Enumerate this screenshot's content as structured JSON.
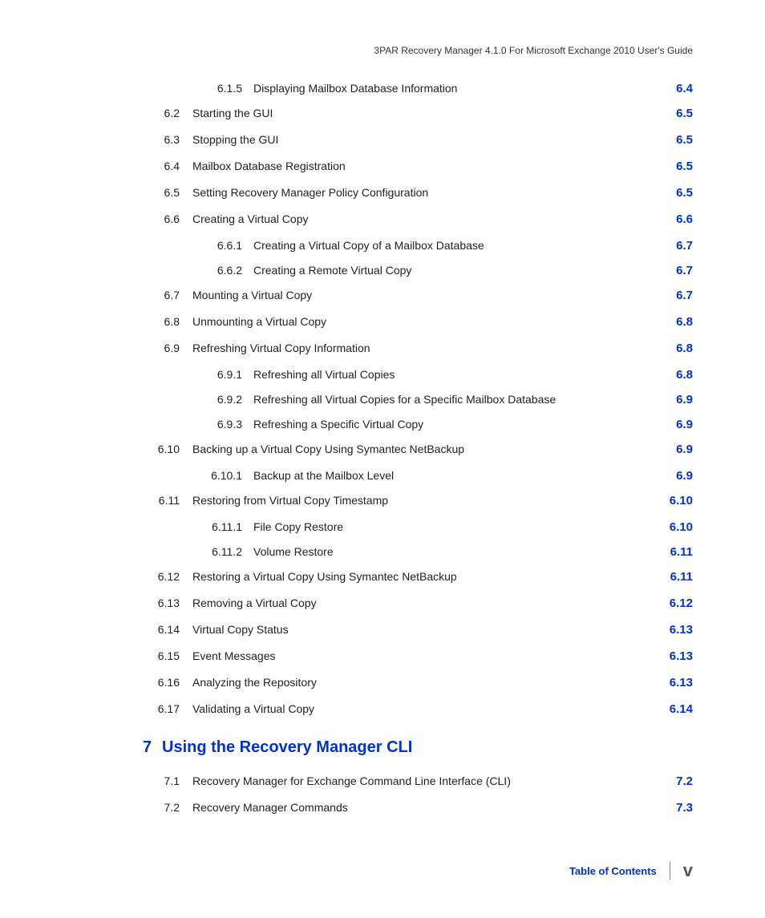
{
  "header": "3PAR Recovery Manager 4.1.0 For Microsoft Exchange 2010 User's Guide",
  "footer": {
    "label": "Table of Contents",
    "page": "v"
  },
  "colors": {
    "link": "#0033cc",
    "text": "#222222",
    "footer_page": "#555555",
    "background": "#ffffff"
  },
  "fontsizes": {
    "body": 14,
    "page_ref": 15,
    "chapter": 20,
    "header": 12,
    "footer_label": 13,
    "footer_page": 22
  },
  "chapter": {
    "num": "7",
    "title": "Using the Recovery Manager CLI"
  },
  "toc": [
    {
      "type": "sub",
      "num": "6.1.5",
      "title": "Displaying Mailbox Database Information",
      "page": "6.4"
    },
    {
      "type": "main",
      "num": "6.2",
      "title": "Starting the GUI",
      "page": "6.5"
    },
    {
      "type": "main",
      "num": "6.3",
      "title": "Stopping the GUI",
      "page": "6.5"
    },
    {
      "type": "main",
      "num": "6.4",
      "title": "Mailbox Database Registration",
      "page": "6.5"
    },
    {
      "type": "main",
      "num": "6.5",
      "title": "Setting Recovery Manager Policy Configuration",
      "page": "6.5"
    },
    {
      "type": "main",
      "num": "6.6",
      "title": "Creating a Virtual Copy",
      "page": "6.6"
    },
    {
      "type": "sub",
      "num": "6.6.1",
      "title": "Creating a Virtual Copy of a Mailbox Database",
      "page": "6.7"
    },
    {
      "type": "sub",
      "num": "6.6.2",
      "title": "Creating a Remote Virtual Copy",
      "page": "6.7"
    },
    {
      "type": "main",
      "num": "6.7",
      "title": "Mounting a Virtual Copy",
      "page": "6.7"
    },
    {
      "type": "main",
      "num": "6.8",
      "title": "Unmounting a Virtual Copy",
      "page": "6.8"
    },
    {
      "type": "main",
      "num": "6.9",
      "title": "Refreshing Virtual Copy Information",
      "page": "6.8"
    },
    {
      "type": "sub",
      "num": "6.9.1",
      "title": "Refreshing all Virtual Copies",
      "page": "6.8"
    },
    {
      "type": "sub",
      "num": "6.9.2",
      "title": "Refreshing all Virtual Copies for a Specific Mailbox Database",
      "page": "6.9"
    },
    {
      "type": "sub",
      "num": "6.9.3",
      "title": "Refreshing a Specific Virtual Copy",
      "page": "6.9"
    },
    {
      "type": "main",
      "num": "6.10",
      "title": "Backing up a Virtual Copy Using Symantec NetBackup",
      "page": "6.9"
    },
    {
      "type": "sub",
      "num": "6.10.1",
      "title": "Backup at the Mailbox Level",
      "page": "6.9"
    },
    {
      "type": "main",
      "num": "6.11",
      "title": "Restoring from Virtual Copy Timestamp",
      "page": "6.10"
    },
    {
      "type": "sub",
      "num": "6.11.1",
      "title": "File Copy Restore",
      "page": "6.10"
    },
    {
      "type": "sub",
      "num": "6.11.2",
      "title": "Volume Restore",
      "page": "6.11"
    },
    {
      "type": "main",
      "num": "6.12",
      "title": "Restoring a Virtual Copy Using Symantec NetBackup",
      "page": "6.11"
    },
    {
      "type": "main",
      "num": "6.13",
      "title": "Removing a Virtual Copy",
      "page": "6.12"
    },
    {
      "type": "main",
      "num": "6.14",
      "title": "Virtual Copy Status",
      "page": "6.13"
    },
    {
      "type": "main",
      "num": "6.15",
      "title": "Event Messages",
      "page": "6.13"
    },
    {
      "type": "main",
      "num": "6.16",
      "title": "Analyzing the Repository",
      "page": "6.13"
    },
    {
      "type": "main",
      "num": "6.17",
      "title": "Validating a Virtual Copy",
      "page": "6.14"
    }
  ],
  "toc_after": [
    {
      "type": "main",
      "num": "7.1",
      "title": "Recovery Manager for Exchange Command Line Interface (CLI)",
      "page": "7.2"
    },
    {
      "type": "main",
      "num": "7.2",
      "title": "Recovery Manager Commands",
      "page": "7.3"
    }
  ]
}
